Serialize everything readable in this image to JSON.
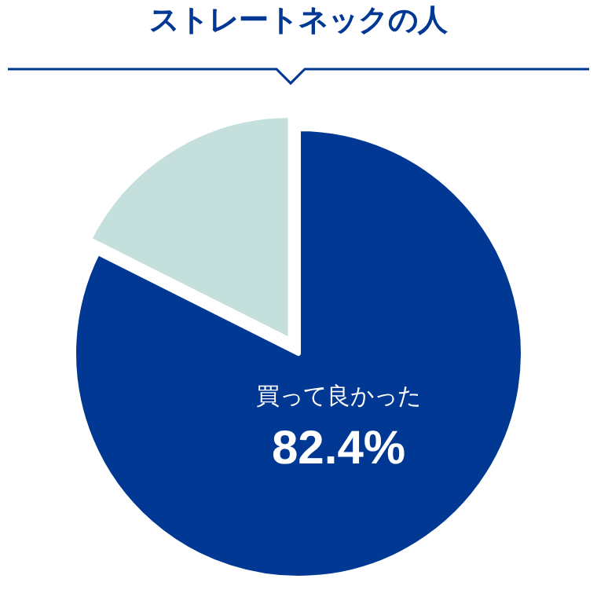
{
  "chart_data": {
    "type": "pie",
    "title": "ストレートネックの人",
    "categories": [
      "買って良かった",
      null
    ],
    "values": [
      82.4,
      17.6
    ],
    "colors": [
      "#003893",
      "#c5dfdd"
    ],
    "value_labels": [
      "82.4%",
      null
    ]
  }
}
